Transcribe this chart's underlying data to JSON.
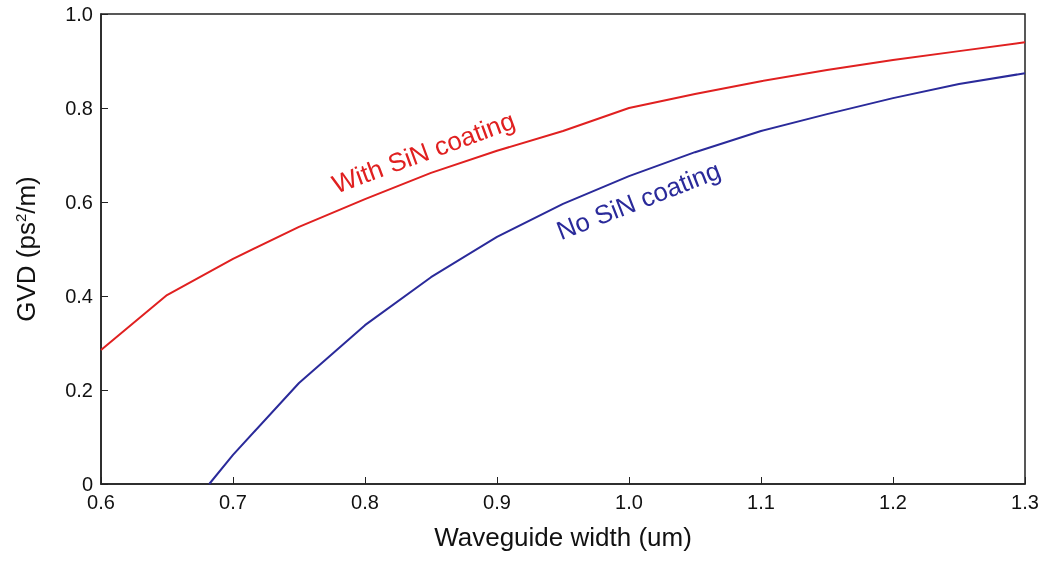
{
  "chart_data": {
    "type": "line",
    "xlabel": "Waveguide width (um)",
    "ylabel": "GVD (ps$^{2}$/m)",
    "xlim": [
      0.6,
      1.3
    ],
    "xticks": [
      0.6,
      0.7,
      0.8,
      0.9,
      {
        "value": 1,
        "label": "1.0"
      },
      1.1,
      1.2,
      1.3
    ],
    "ylim": [
      0,
      1
    ],
    "yticks": [
      0,
      0.2,
      0.4,
      0.6,
      0.8,
      {
        "value": 1,
        "label": "1.0"
      }
    ],
    "grid": false,
    "legend": false,
    "marker": "none",
    "line_style": "solid",
    "series": [
      {
        "name": "With SiN coating",
        "color": "#e02020",
        "x": [
          0.6,
          0.65,
          0.7,
          0.75,
          0.8,
          0.85,
          0.9,
          0.95,
          1.0,
          1.05,
          1.1,
          1.15,
          1.2,
          1.25,
          1.3
        ],
        "values": [
          0.285,
          0.402,
          0.479,
          0.547,
          0.606,
          0.662,
          0.709,
          0.751,
          0.8,
          0.83,
          0.857,
          0.881,
          0.902,
          0.921,
          0.94
        ]
      },
      {
        "name": "No SiN coating",
        "color": "#2a2a9a",
        "x": [
          0.682,
          0.7,
          0.75,
          0.8,
          0.85,
          0.9,
          0.95,
          1.0,
          1.05,
          1.1,
          1.15,
          1.2,
          1.25,
          1.3
        ],
        "values": [
          0,
          0.062,
          0.215,
          0.338,
          0.44,
          0.526,
          0.596,
          0.655,
          0.706,
          0.751,
          0.787,
          0.821,
          0.851,
          0.874
        ]
      }
    ]
  }
}
